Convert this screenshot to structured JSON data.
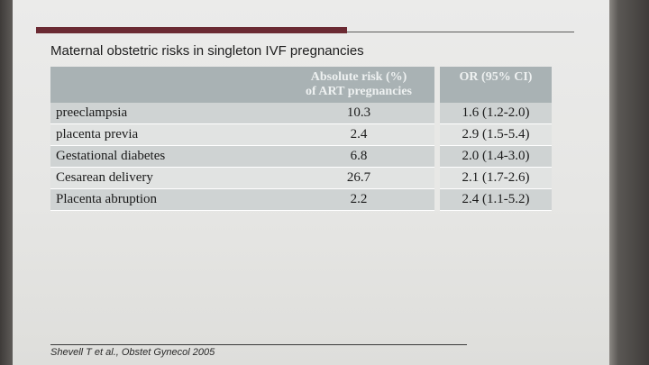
{
  "slide": {
    "title": "Maternal obstetric risks in singleton IVF pregnancies",
    "source": "Shevell T et al., Obstet Gynecol 2005",
    "accent_color": "#6b2a33",
    "header_color": "#a9b2b4"
  },
  "table": {
    "headers": {
      "condition": "",
      "absolute_risk_line1": "Absolute risk (%)",
      "absolute_risk_line2": "of ART pregnancies",
      "odds_ratio": "OR (95% CI)"
    },
    "rows": [
      {
        "condition": "preeclampsia",
        "absolute_risk": "10.3",
        "odds_ratio": "1.6 (1.2-2.0)"
      },
      {
        "condition": "placenta previa",
        "absolute_risk": "2.4",
        "odds_ratio": "2.9 (1.5-5.4)"
      },
      {
        "condition": "Gestational diabetes",
        "absolute_risk": "6.8",
        "odds_ratio": "2.0 (1.4-3.0)"
      },
      {
        "condition": "Cesarean delivery",
        "absolute_risk": "26.7",
        "odds_ratio": "2.1 (1.7-2.6)"
      },
      {
        "condition": "Placenta abruption",
        "absolute_risk": "2.2",
        "odds_ratio": "2.4 (1.1-5.2)"
      }
    ]
  }
}
